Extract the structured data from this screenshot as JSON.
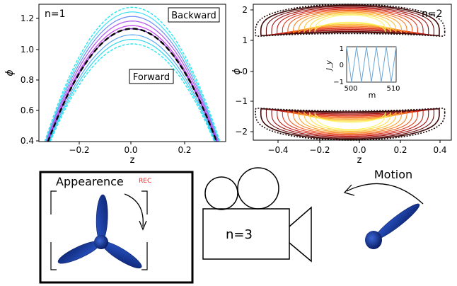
{
  "panels": {
    "top_left": {
      "label": "n=1",
      "backward_label": "Backward",
      "forward_label": "Forward",
      "xlabel": "z",
      "ylabel": "ϕ",
      "xticks": [
        "−0.2",
        "0.0",
        "0.2"
      ],
      "yticks": [
        "0.4",
        "0.6",
        "0.8",
        "1.0",
        "1.2"
      ]
    },
    "top_right": {
      "label": "n=2",
      "xlabel": "z",
      "ylabel": "ϕ",
      "xticks": [
        "−0.4",
        "−0.2",
        "0.0",
        "0.2",
        "0.4"
      ],
      "yticks": [
        "−2",
        "−1",
        "0",
        "1",
        "2"
      ],
      "inset": {
        "xlabel": "m",
        "ylabel": "J_y",
        "xticks": [
          "500",
          "510"
        ],
        "yticks": [
          "1",
          "0",
          "−1"
        ]
      }
    },
    "bottom": {
      "appearance_label": "Appearence",
      "rec_label": "REC",
      "camera_label": "n=3",
      "motion_label": "Motion"
    }
  },
  "chart_data": [
    {
      "type": "line",
      "title": "n=1",
      "xlabel": "z",
      "ylabel": "ϕ",
      "xlim": [
        -0.36,
        0.36
      ],
      "ylim": [
        0.4,
        1.3
      ],
      "grid": false,
      "annotations": [
        "Backward",
        "Forward"
      ],
      "series": [
        {
          "x": [
            -0.32,
            -0.2,
            -0.1,
            0.0,
            0.1,
            0.2,
            0.32
          ],
          "y": [
            0.4,
            0.87,
            1.08,
            1.14,
            1.08,
            0.87,
            0.4
          ]
        },
        {
          "x": [
            -0.34,
            -0.2,
            -0.1,
            0.0,
            0.1,
            0.2,
            0.34
          ],
          "y": [
            0.4,
            0.93,
            1.16,
            1.24,
            1.16,
            0.93,
            0.4
          ]
        },
        {
          "x": [
            -0.32,
            -0.2,
            -0.1,
            0.0,
            0.1,
            0.2,
            0.32
          ],
          "y": [
            0.4,
            0.81,
            1.0,
            1.07,
            1.0,
            0.81,
            0.4
          ]
        }
      ]
    },
    {
      "type": "line",
      "title": "n=2",
      "xlabel": "z",
      "ylabel": "ϕ",
      "xlim": [
        -0.45,
        0.45
      ],
      "ylim": [
        -2.2,
        2.2
      ],
      "grid": false,
      "series": [
        {
          "x": [
            -0.4,
            -0.3,
            -0.2,
            0.0,
            0.2,
            0.3,
            0.4
          ],
          "y": [
            1.0,
            1.45,
            1.75,
            1.9,
            1.75,
            1.45,
            1.0
          ]
        },
        {
          "x": [
            -0.4,
            -0.3,
            -0.2,
            0.0,
            0.2,
            0.3,
            0.4
          ],
          "y": [
            -1.0,
            -1.45,
            -1.75,
            -1.9,
            -1.75,
            -1.45,
            -1.0
          ]
        }
      ]
    },
    {
      "type": "line",
      "title": "",
      "xlabel": "m",
      "ylabel": "J_y",
      "xlim": [
        500,
        510
      ],
      "ylim": [
        -1,
        1
      ],
      "series": [
        {
          "x": [
            500,
            501,
            502,
            503,
            504,
            505,
            506,
            507,
            508,
            509,
            510
          ],
          "y": [
            1,
            -1,
            1,
            -1,
            1,
            -1,
            1,
            -1,
            1,
            -1,
            1
          ]
        }
      ]
    }
  ]
}
